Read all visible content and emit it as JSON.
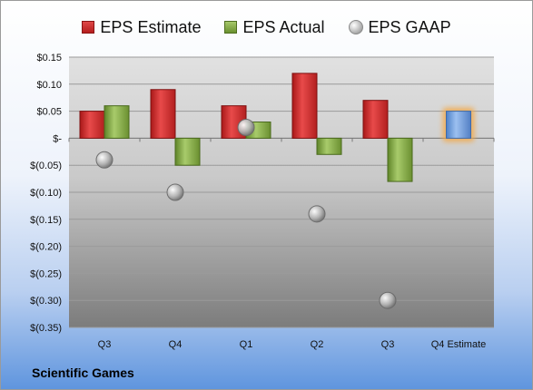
{
  "legend": {
    "estimate_label": "EPS Estimate",
    "actual_label": "EPS Actual",
    "gaap_label": "EPS GAAP"
  },
  "company": "Scientific Games",
  "chart_data": {
    "type": "bar",
    "categories": [
      "Q3",
      "Q4",
      "Q1",
      "Q2",
      "Q3",
      "Q4 Estimate"
    ],
    "series": [
      {
        "name": "EPS Estimate",
        "values": [
          0.05,
          0.09,
          0.06,
          0.12,
          0.07,
          null
        ],
        "color": "#c92a2a"
      },
      {
        "name": "EPS Actual",
        "values": [
          0.06,
          -0.05,
          0.03,
          -0.03,
          -0.08,
          null
        ],
        "color": "#86ac45"
      },
      {
        "name": "EPS GAAP",
        "type": "scatter",
        "values": [
          -0.04,
          -0.1,
          0.02,
          -0.14,
          -0.3,
          null
        ],
        "color": "#a9a9a9"
      },
      {
        "name": "Q4 Estimate",
        "values": [
          null,
          null,
          null,
          null,
          null,
          0.05
        ],
        "color": "#6f9fe0",
        "highlight": "#f2a94a"
      }
    ],
    "yticks": [
      "$0.15",
      "$0.10",
      "$0.05",
      "$-",
      "$(0.05)",
      "$(0.10)",
      "$(0.15)",
      "$(0.20)",
      "$(0.25)",
      "$(0.30)",
      "$(0.35)"
    ],
    "ylim": [
      -0.35,
      0.15
    ],
    "grid": true,
    "legend_position": "top"
  }
}
